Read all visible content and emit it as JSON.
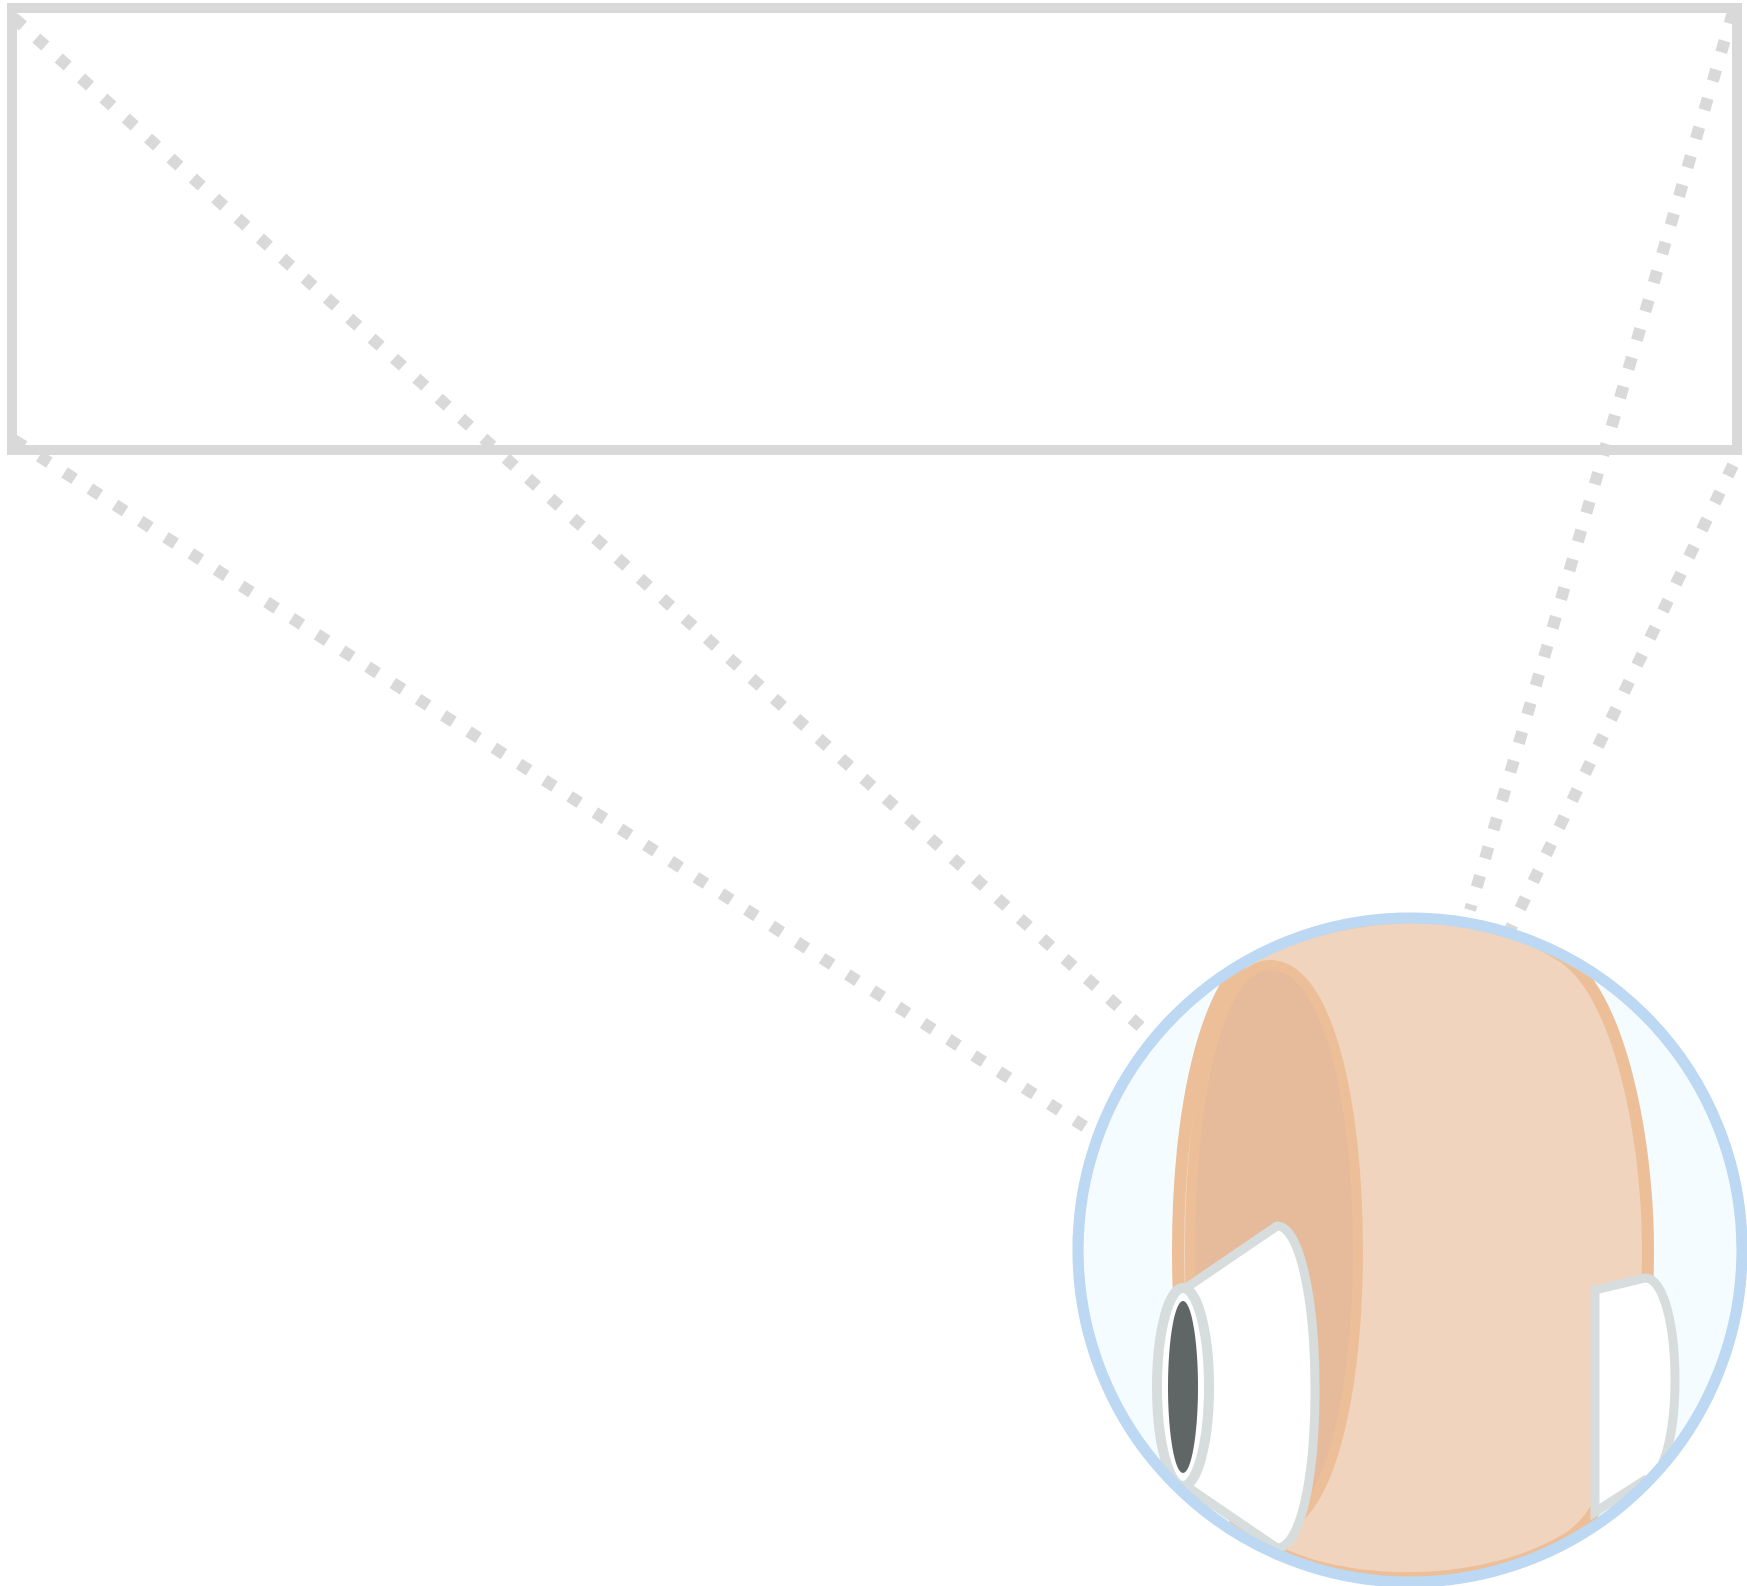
{
  "diagram": {
    "title": "",
    "colors": {
      "outline_gray": "#d9d9d9",
      "circle_border": "#bcd8f2",
      "circle_fill": "#f5fcff",
      "orange_outline": "#ecbf98",
      "orange_face": "#f0d4bd",
      "orange_inner": "#e6bb9b",
      "hole_outline": "#d7dcdc",
      "hole_fill": "#ffffff",
      "dark_hole": "#606665"
    },
    "parts": [
      {
        "name": "selection-rectangle",
        "shape": "rectangle",
        "style": "solid outline"
      },
      {
        "name": "connector-lines",
        "shape": "dotted line",
        "count": 4
      },
      {
        "name": "magnifier-circle",
        "shape": "circle"
      },
      {
        "name": "cylinder-body",
        "shape": "cylinder",
        "color": "orange"
      },
      {
        "name": "cylinder-holes",
        "shape": "ellipse",
        "count": 3
      }
    ]
  }
}
